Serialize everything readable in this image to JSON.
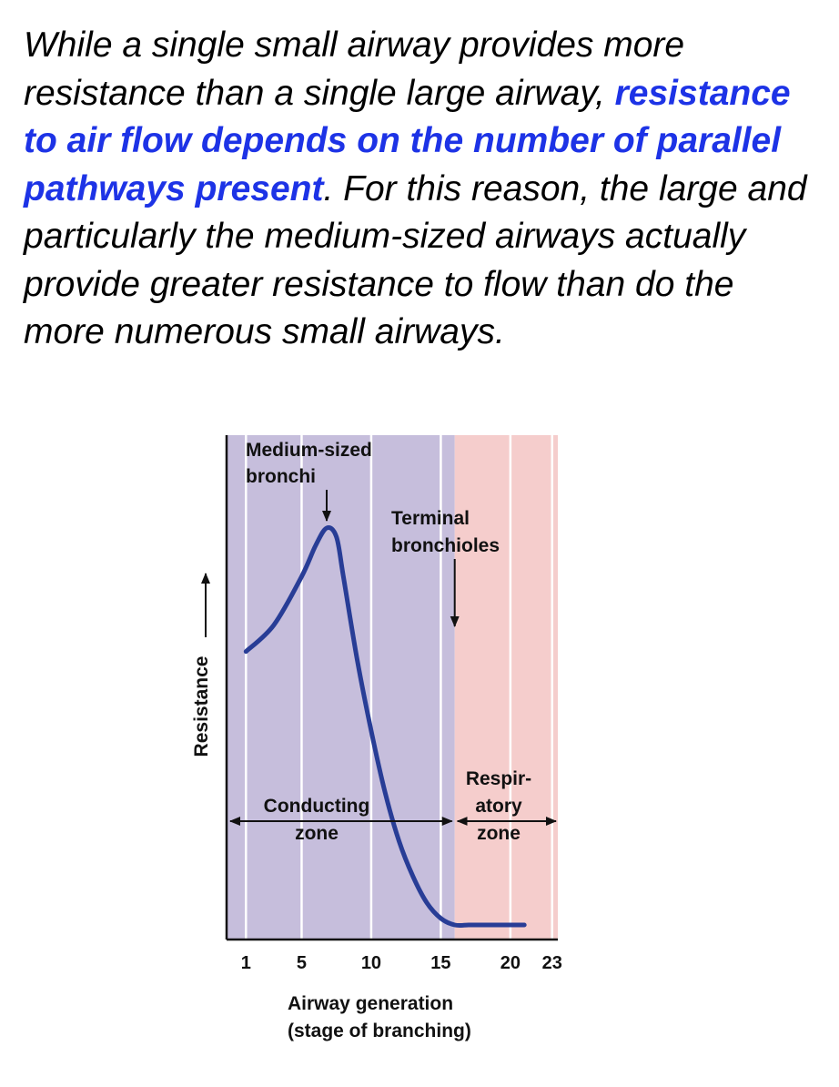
{
  "paragraph": {
    "text_before": "While a single small airway provides more resistance than a single large airway, ",
    "highlight": "resistance to air flow depends on the number of parallel pathways present",
    "text_after": ". For this reason, the large and particularly the medium-sized airways actually provide greater resistance to flow than do the more numerous small airways."
  },
  "colors": {
    "conducting_zone_fill": "#c6bedc",
    "respiratory_zone_fill": "#f5cdcc",
    "curve": "#283d96",
    "highlight_text": "#1d33e6"
  },
  "chart_data": {
    "type": "line",
    "title": "",
    "xlabel_lines": [
      "Airway generation",
      "(stage of branching)"
    ],
    "ylabel": "Resistance",
    "x_ticks": [
      1,
      5,
      10,
      15,
      20,
      23
    ],
    "xlim": [
      0,
      23
    ],
    "y_scale": "relative (no numeric values shown)",
    "ylim": [
      0,
      1
    ],
    "grid": "vertical lines at tick generations",
    "zones": [
      {
        "name_lines": [
          "Conducting",
          "zone"
        ],
        "from": 0,
        "to": 16
      },
      {
        "name_lines": [
          "Respir-",
          "atory",
          "zone"
        ],
        "from": 16,
        "to": 23
      }
    ],
    "annotations": [
      {
        "lines": [
          "Medium-sized",
          "bronchi"
        ],
        "x": 6.8
      },
      {
        "lines": [
          "Terminal",
          "bronchioles"
        ],
        "x": 16
      }
    ],
    "series": [
      {
        "x": [
          1,
          3,
          5,
          6,
          6.8,
          7.5,
          8,
          9,
          10,
          11,
          12,
          13,
          14,
          15,
          16,
          17,
          18,
          19,
          20,
          21
        ],
        "y": [
          0.62,
          0.68,
          0.79,
          0.86,
          0.9,
          0.88,
          0.79,
          0.6,
          0.44,
          0.3,
          0.19,
          0.11,
          0.05,
          0.015,
          0.0,
          0.0,
          0.0,
          0.0,
          0.0,
          0.0
        ]
      }
    ]
  }
}
